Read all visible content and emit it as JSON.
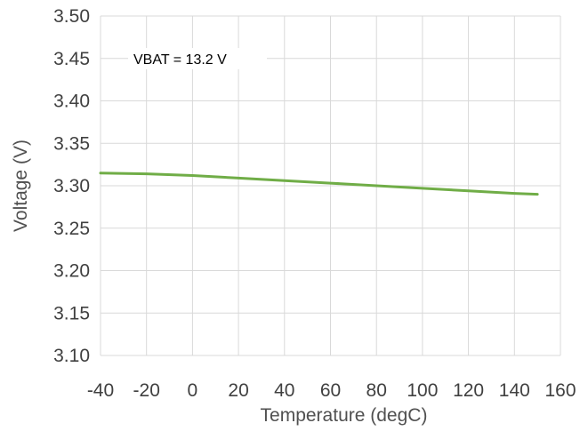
{
  "chart_data": {
    "type": "line",
    "xlabel": "Temperature (degC)",
    "ylabel": "Voltage (V)",
    "xlim": [
      -40,
      160
    ],
    "ylim": [
      3.1,
      3.5
    ],
    "x_ticks": [
      "-40",
      "-20",
      "0",
      "20",
      "40",
      "60",
      "80",
      "100",
      "120",
      "140",
      "160"
    ],
    "y_ticks": [
      "3.10",
      "3.15",
      "3.20",
      "3.25",
      "3.30",
      "3.35",
      "3.40",
      "3.45",
      "3.50"
    ],
    "grid": true,
    "annotation": "VBAT = 13.2 V",
    "series": [
      {
        "color": "#70ad47",
        "x": [
          -40,
          -20,
          0,
          20,
          40,
          60,
          80,
          100,
          120,
          140,
          150
        ],
        "y": [
          3.315,
          3.314,
          3.312,
          3.309,
          3.306,
          3.303,
          3.3,
          3.297,
          3.294,
          3.291,
          3.29
        ]
      }
    ]
  }
}
